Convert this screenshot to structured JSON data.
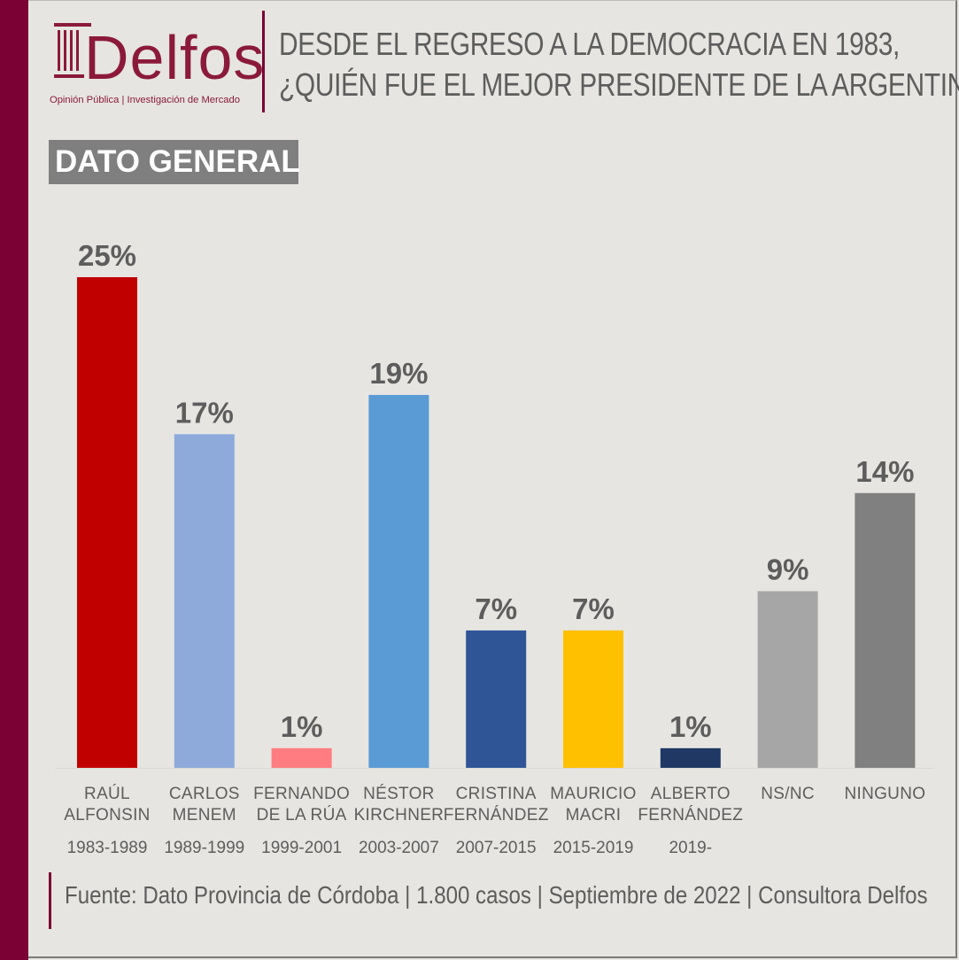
{
  "brand": {
    "name": "Delfos",
    "tagline": "Opinión Pública | Investigación de Mercado"
  },
  "header": {
    "title_line1": "DESDE EL REGRESO A LA DEMOCRACIA EN 1983,",
    "title_line2": "¿QUIÉN FUE EL MEJOR PRESIDENTE DE LA ARGENTINA?"
  },
  "badge": {
    "label": "DATO GENERAL"
  },
  "footer": {
    "source": "Fuente: Dato Provincia de Córdoba | 1.800 casos | Septiembre de 2022 | Consultora Delfos"
  },
  "colors": {
    "brand": "#7b0034",
    "text": "#5d5d5d",
    "badge": "#7f7f7f",
    "background": "#e6e5e1"
  },
  "chart_data": {
    "type": "bar",
    "categories": [
      {
        "name": [
          "RAÚL",
          "ALFONSIN"
        ],
        "period": "1983-1989"
      },
      {
        "name": [
          "CARLOS",
          "MENEM"
        ],
        "period": "1989-1999"
      },
      {
        "name": [
          "FERNANDO",
          "DE LA RÚA"
        ],
        "period": "1999-2001"
      },
      {
        "name": [
          "NÉSTOR",
          "KIRCHNER"
        ],
        "period": "2003-2007"
      },
      {
        "name": [
          "CRISTINA",
          "FERNÁNDEZ"
        ],
        "period": "2007-2015"
      },
      {
        "name": [
          "MAURICIO",
          "MACRI"
        ],
        "period": "2015-2019"
      },
      {
        "name": [
          "ALBERTO",
          "FERNÁNDEZ"
        ],
        "period": "2019-"
      },
      {
        "name": [
          "NS/NC"
        ],
        "period": ""
      },
      {
        "name": [
          "NINGUNO"
        ],
        "period": ""
      }
    ],
    "values": [
      25,
      17,
      1,
      19,
      7,
      7,
      1,
      9,
      14
    ],
    "value_labels": [
      "25%",
      "17%",
      "1%",
      "19%",
      "7%",
      "7%",
      "1%",
      "9%",
      "14%"
    ],
    "bar_colors": [
      "#c00000",
      "#8eaadb",
      "#ff7c80",
      "#5b9bd5",
      "#2f5597",
      "#ffc000",
      "#1f3864",
      "#a6a6a6",
      "#808080"
    ],
    "ylim": [
      0,
      25
    ],
    "grid": false,
    "legend": "none",
    "xlabel": "",
    "ylabel": ""
  }
}
